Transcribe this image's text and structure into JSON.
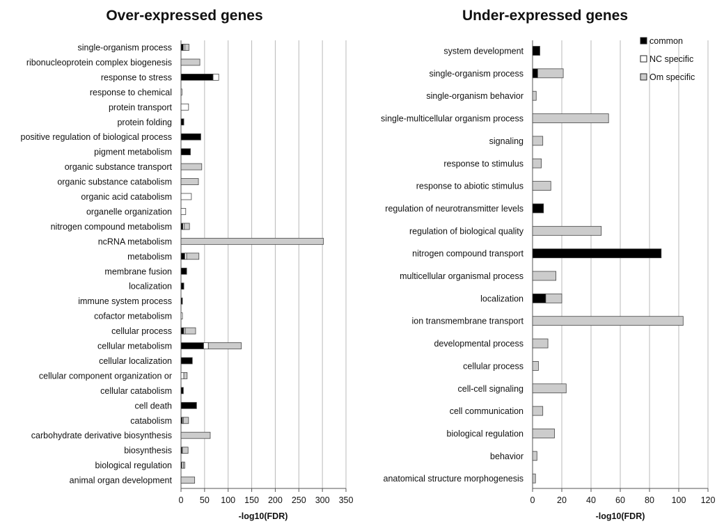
{
  "colors": {
    "common": "#000000",
    "nc_specific": "#ffffff",
    "om_specific": "#cccccc",
    "grid": "#b8b8b8",
    "edge": "#444444"
  },
  "legend": [
    {
      "key": "common",
      "label": "common"
    },
    {
      "key": "nc_specific",
      "label": "NC specific"
    },
    {
      "key": "om_specific",
      "label": "Om specific"
    }
  ],
  "chart_data": [
    {
      "type": "bar",
      "orientation": "horizontal",
      "stacked": true,
      "title": "Over-expressed genes",
      "xlabel": "-log10(FDR)",
      "xlim": [
        0,
        350
      ],
      "xticks": [
        0,
        50,
        100,
        150,
        200,
        250,
        300,
        350
      ],
      "grid": true,
      "categories": [
        "single-organism process",
        "ribonucleoprotein complex biogenesis",
        "response to stress",
        "response to chemical",
        "protein transport",
        "protein folding",
        "positive regulation of biological process",
        "pigment metabolism",
        "organic substance transport",
        "organic substance catabolism",
        "organic acid catabolism",
        "organelle organization",
        "nitrogen compound metabolism",
        "ncRNA metabolism",
        "metabolism",
        "membrane fusion",
        "localization",
        "immune system process",
        "cofactor metabolism",
        "cellular process",
        "cellular metabolism",
        "cellular localization",
        "cellular component organization or",
        "cellular catabolism",
        "cell death",
        "catabolism",
        "carbohydrate derivative biosynthesis",
        "biosynthesis",
        "biological regulation",
        "animal organ development"
      ],
      "series": [
        {
          "key": "common",
          "values": [
            5,
            0,
            68,
            0,
            0,
            6,
            42,
            20,
            0,
            0,
            0,
            0,
            4,
            0,
            8,
            12,
            6,
            3,
            0,
            6,
            48,
            24,
            0,
            5,
            33,
            3,
            0,
            2,
            2,
            0
          ]
        },
        {
          "key": "nc_specific",
          "values": [
            3,
            0,
            12,
            2,
            16,
            0,
            0,
            0,
            0,
            0,
            22,
            10,
            3,
            0,
            4,
            0,
            0,
            0,
            3,
            3,
            10,
            0,
            6,
            0,
            0,
            2,
            0,
            1,
            3,
            0
          ]
        },
        {
          "key": "om_specific",
          "values": [
            9,
            40,
            0,
            0,
            0,
            0,
            0,
            0,
            44,
            37,
            0,
            0,
            11,
            302,
            26,
            0,
            0,
            0,
            0,
            22,
            70,
            0,
            7,
            0,
            0,
            11,
            62,
            12,
            3,
            29
          ]
        }
      ]
    },
    {
      "type": "bar",
      "orientation": "horizontal",
      "stacked": true,
      "title": "Under-expressed genes",
      "xlabel": "-log10(FDR)",
      "xlim": [
        0,
        120
      ],
      "xticks": [
        0,
        20,
        40,
        60,
        80,
        100,
        120
      ],
      "grid": true,
      "legend_position": "top-right",
      "categories": [
        "system development",
        "single-organism process",
        "single-organism behavior",
        "single-multicellular organism process",
        "signaling",
        "response to stimulus",
        "response to abiotic stimulus",
        "regulation of neurotransmitter levels",
        "regulation of biological quality",
        "nitrogen compound transport",
        "multicellular organismal process",
        "localization",
        "ion transmembrane transport",
        "developmental process",
        "cellular process",
        "cell-cell signaling",
        "cell communication",
        "biological regulation",
        "behavior",
        "anatomical structure morphogenesis"
      ],
      "series": [
        {
          "key": "common",
          "values": [
            5,
            3.5,
            0,
            0,
            0,
            0,
            0,
            7.5,
            0,
            88,
            0,
            9,
            0,
            0,
            0,
            0,
            0,
            0,
            0,
            0
          ]
        },
        {
          "key": "nc_specific",
          "values": [
            0,
            0,
            0,
            0,
            0,
            0,
            0,
            0,
            0,
            0,
            0,
            0,
            0,
            0,
            0,
            0,
            0,
            0,
            0,
            0
          ]
        },
        {
          "key": "om_specific",
          "values": [
            0,
            17.5,
            2.5,
            52,
            7,
            6,
            12.5,
            0,
            47,
            0,
            16,
            11,
            103,
            10.5,
            4,
            23,
            7,
            15,
            3,
            2
          ]
        }
      ]
    }
  ]
}
